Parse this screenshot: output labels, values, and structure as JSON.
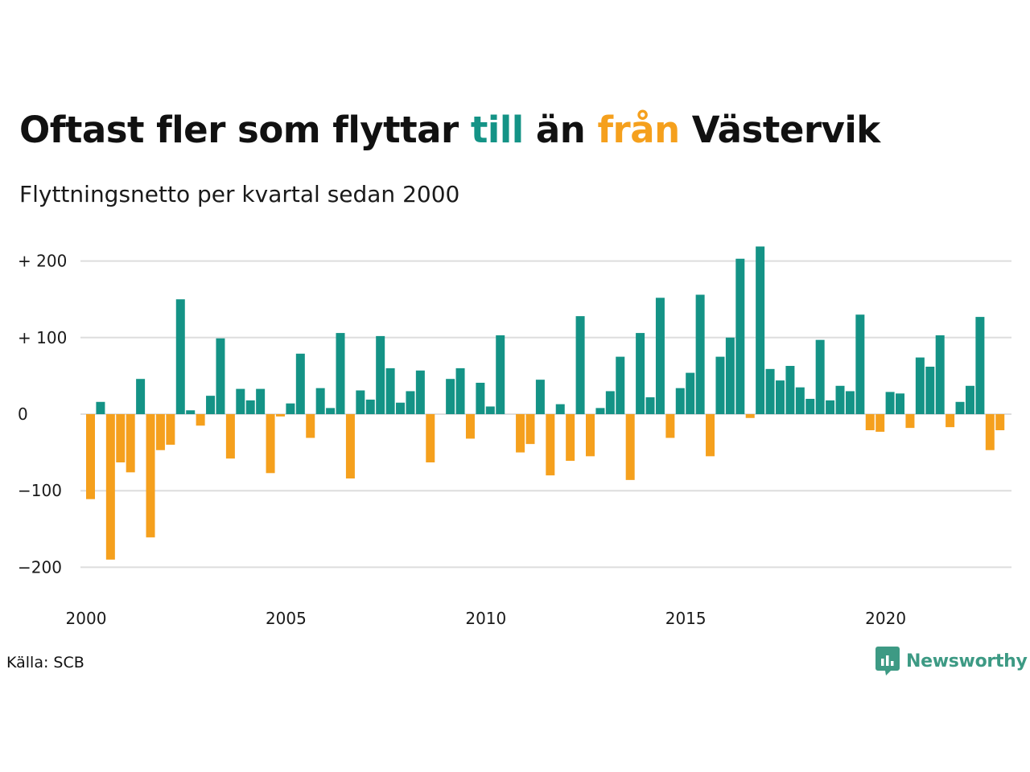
{
  "title": {
    "part1": "Oftast fler som flyttar ",
    "till": "till",
    "part2": " än ",
    "fran": "från",
    "part3": " Västervik"
  },
  "subtitle": "Flyttningsnetto per kvartal sedan 2000",
  "source": "Källa: SCB",
  "brand": {
    "name": "Newsworthy",
    "icon": "newsworthy-logo-icon"
  },
  "colors": {
    "positive": "#149386",
    "negative": "#f5a01d",
    "grid": "#dddddd",
    "text": "#1a1a1a"
  },
  "chart_data": {
    "type": "bar",
    "title": "Oftast fler som flyttar till än från Västervik",
    "subtitle": "Flyttningsnetto per kvartal sedan 2000",
    "x_start": "2000-Q1",
    "x_ticks": [
      "2000",
      "2005",
      "2010",
      "2015",
      "2020"
    ],
    "y_ticks": [
      {
        "value": 200,
        "label": "+ 200"
      },
      {
        "value": 100,
        "label": "+ 100"
      },
      {
        "value": 0,
        "label": "0"
      },
      {
        "value": -100,
        "label": "−100"
      },
      {
        "value": -200,
        "label": "−200"
      }
    ],
    "ylim": [
      -230,
      230
    ],
    "grid": true,
    "values": [
      -111,
      16,
      -190,
      -63,
      -76,
      46,
      -161,
      -47,
      -40,
      150,
      5,
      -15,
      24,
      99,
      -58,
      33,
      18,
      33,
      -77,
      -3,
      14,
      79,
      -31,
      34,
      8,
      106,
      -84,
      31,
      19,
      102,
      60,
      15,
      30,
      57,
      -63,
      0,
      46,
      60,
      -32,
      41,
      10,
      103,
      0,
      -50,
      -39,
      45,
      -80,
      13,
      -61,
      128,
      -55,
      8,
      30,
      75,
      -86,
      106,
      22,
      152,
      -31,
      34,
      54,
      156,
      -55,
      75,
      100,
      203,
      -5,
      219,
      59,
      44,
      63,
      35,
      20,
      97,
      18,
      37,
      30,
      130,
      -21,
      -23,
      29,
      27,
      -18,
      74,
      62,
      103,
      -17,
      16,
      37,
      127,
      -47,
      -21
    ]
  }
}
